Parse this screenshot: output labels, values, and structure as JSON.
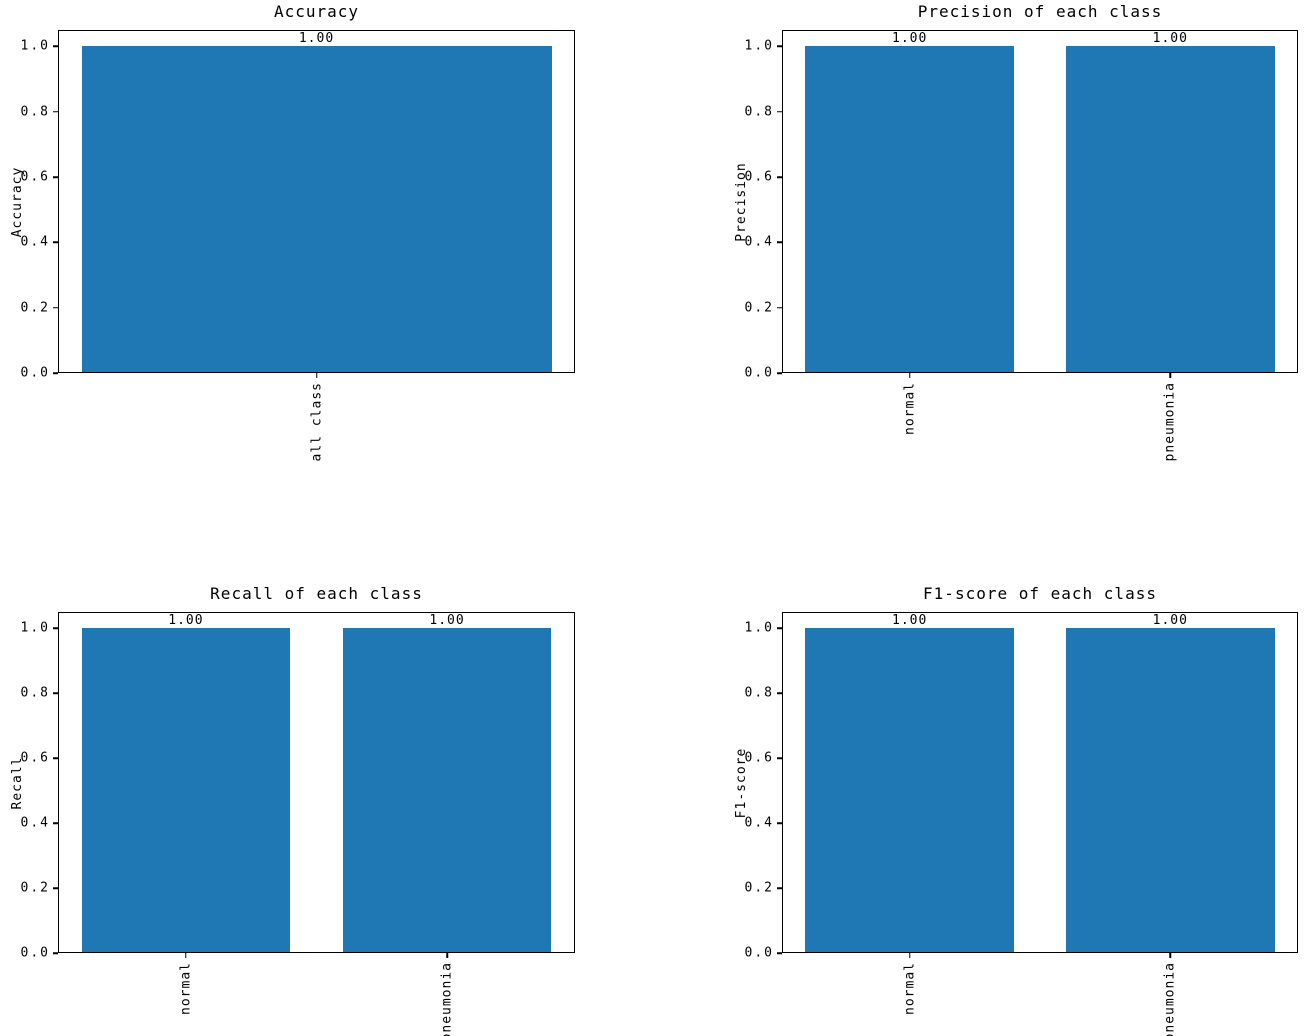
{
  "figure": {
    "background": "#ffffff"
  },
  "colors": {
    "bar": "#1f77b4",
    "spine": "#000000",
    "text": "#000000"
  },
  "chart_data": [
    {
      "id": "accuracy",
      "type": "bar",
      "title": "Accuracy",
      "xlabel": "",
      "ylabel": "Accuracy",
      "categories": [
        "all class"
      ],
      "values": [
        1.0
      ],
      "bar_labels": [
        "1.00"
      ],
      "yticks": [
        0.0,
        0.2,
        0.4,
        0.6,
        0.8,
        1.0
      ],
      "ytick_labels": [
        "0.0",
        "0.2",
        "0.4",
        "0.6",
        "0.8",
        "1.0"
      ],
      "ylim": [
        0,
        1.05
      ],
      "grid": false,
      "legend": null,
      "x_tick_rotation_deg": 90
    },
    {
      "id": "precision",
      "type": "bar",
      "title": "Precision of each class",
      "xlabel": "",
      "ylabel": "Precision",
      "categories": [
        "normal",
        "pneumonia"
      ],
      "values": [
        1.0,
        1.0
      ],
      "bar_labels": [
        "1.00",
        "1.00"
      ],
      "yticks": [
        0.0,
        0.2,
        0.4,
        0.6,
        0.8,
        1.0
      ],
      "ytick_labels": [
        "0.0",
        "0.2",
        "0.4",
        "0.6",
        "0.8",
        "1.0"
      ],
      "ylim": [
        0,
        1.05
      ],
      "grid": false,
      "legend": null,
      "x_tick_rotation_deg": 90
    },
    {
      "id": "recall",
      "type": "bar",
      "title": "Recall of each class",
      "xlabel": "",
      "ylabel": "Recall",
      "categories": [
        "normal",
        "pneumonia"
      ],
      "values": [
        1.0,
        1.0
      ],
      "bar_labels": [
        "1.00",
        "1.00"
      ],
      "yticks": [
        0.0,
        0.2,
        0.4,
        0.6,
        0.8,
        1.0
      ],
      "ytick_labels": [
        "0.0",
        "0.2",
        "0.4",
        "0.6",
        "0.8",
        "1.0"
      ],
      "ylim": [
        0,
        1.05
      ],
      "grid": false,
      "legend": null,
      "x_tick_rotation_deg": 90
    },
    {
      "id": "f1-score",
      "type": "bar",
      "title": "F1-score of each class",
      "xlabel": "",
      "ylabel": "F1-score",
      "categories": [
        "normal",
        "pneumonia"
      ],
      "values": [
        1.0,
        1.0
      ],
      "bar_labels": [
        "1.00",
        "1.00"
      ],
      "yticks": [
        0.0,
        0.2,
        0.4,
        0.6,
        0.8,
        1.0
      ],
      "ytick_labels": [
        "0.0",
        "0.2",
        "0.4",
        "0.6",
        "0.8",
        "1.0"
      ],
      "ylim": [
        0,
        1.05
      ],
      "grid": false,
      "legend": null,
      "x_tick_rotation_deg": 90
    }
  ]
}
